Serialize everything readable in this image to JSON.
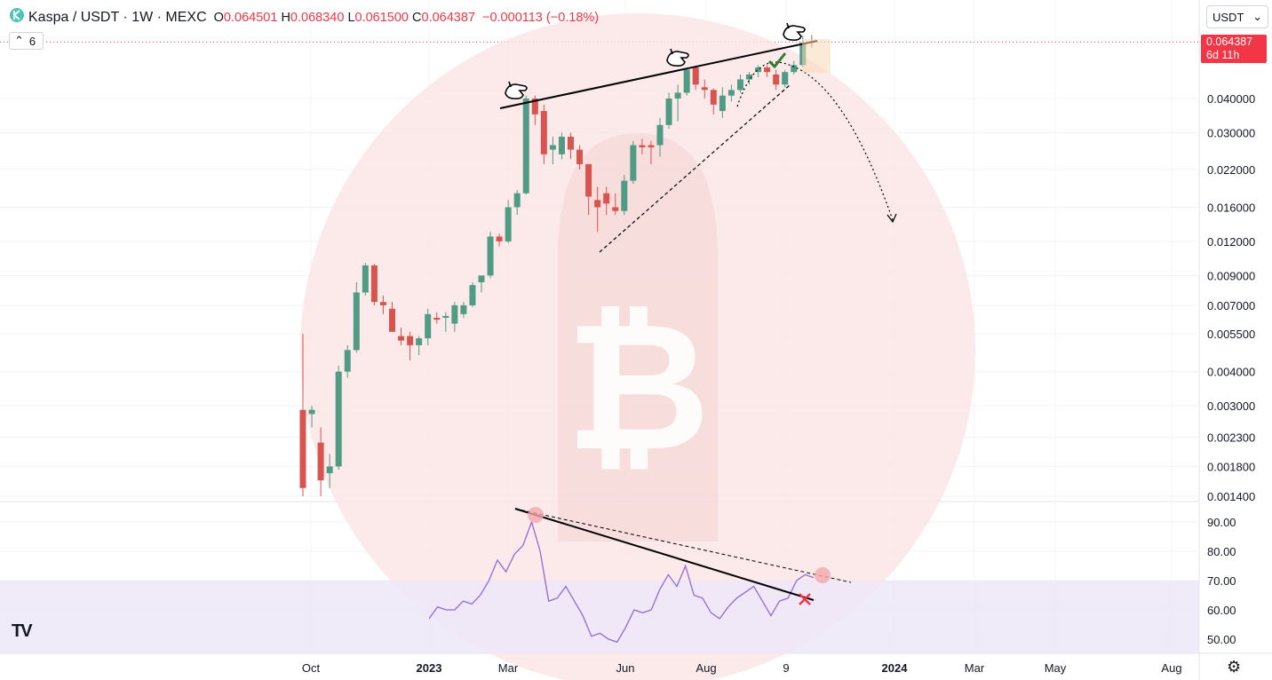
{
  "header": {
    "symbol": "Kaspa / USDT · 1W · MEXC",
    "open_label": "O",
    "open": "0.064501",
    "high_label": "H",
    "high": "0.068340",
    "low_label": "L",
    "low": "0.061500",
    "close_label": "C",
    "close": "0.064387",
    "change": "−0.000113 (−0.18%)"
  },
  "indicator_count": "6",
  "currency_select": "USDT",
  "last_price": {
    "value": "0.064387",
    "countdown": "6d 11h"
  },
  "colors": {
    "up": "#4f9b83",
    "down": "#d9534f",
    "rsi": "#8e6bd8",
    "accent": "#f23645",
    "watermark": "#fbe3e3"
  },
  "chart_data": {
    "type": "candlestick",
    "scale": "log",
    "price_ticks": [
      "0.040000",
      "0.030000",
      "0.022000",
      "0.016000",
      "0.012000",
      "0.009000",
      "0.007000",
      "0.005500",
      "0.004000",
      "0.003000",
      "0.002300",
      "0.001800",
      "0.001400"
    ],
    "x_labels": [
      "Oct",
      "2023",
      "Mar",
      "Jun",
      "Aug",
      "9",
      "2024",
      "Mar",
      "May",
      "Aug"
    ],
    "rsi_ticks": [
      "90.00",
      "80.00",
      "70.00",
      "60.00",
      "50.00"
    ],
    "candles": [
      [
        0.0029,
        0.0055,
        0.0014,
        0.0015
      ],
      [
        0.0028,
        0.003,
        0.0025,
        0.0029
      ],
      [
        0.0022,
        0.0025,
        0.0014,
        0.0016
      ],
      [
        0.0017,
        0.002,
        0.0015,
        0.0018
      ],
      [
        0.0018,
        0.0042,
        0.00175,
        0.004
      ],
      [
        0.004,
        0.005,
        0.0038,
        0.0048
      ],
      [
        0.0048,
        0.0085,
        0.0047,
        0.0078
      ],
      [
        0.0078,
        0.01,
        0.0076,
        0.0098
      ],
      [
        0.0098,
        0.0099,
        0.007,
        0.0072
      ],
      [
        0.0072,
        0.0076,
        0.0065,
        0.007
      ],
      [
        0.0068,
        0.0072,
        0.0056,
        0.0056
      ],
      [
        0.0054,
        0.0058,
        0.005,
        0.0052
      ],
      [
        0.0054,
        0.0056,
        0.0044,
        0.005
      ],
      [
        0.005,
        0.0054,
        0.0046,
        0.0053
      ],
      [
        0.0053,
        0.0068,
        0.005,
        0.0065
      ],
      [
        0.0063,
        0.0066,
        0.006,
        0.0062
      ],
      [
        0.0063,
        0.0066,
        0.0056,
        0.0064
      ],
      [
        0.006,
        0.0072,
        0.0056,
        0.007
      ],
      [
        0.0065,
        0.0072,
        0.0063,
        0.007
      ],
      [
        0.007,
        0.0085,
        0.0069,
        0.0083
      ],
      [
        0.0085,
        0.009,
        0.0078,
        0.009
      ],
      [
        0.009,
        0.013,
        0.0088,
        0.0125
      ],
      [
        0.0125,
        0.0128,
        0.0115,
        0.012
      ],
      [
        0.012,
        0.017,
        0.0118,
        0.016
      ],
      [
        0.016,
        0.0185,
        0.015,
        0.018
      ],
      [
        0.018,
        0.041,
        0.0178,
        0.04
      ],
      [
        0.04,
        0.041,
        0.032,
        0.035
      ],
      [
        0.036,
        0.038,
        0.023,
        0.025
      ],
      [
        0.026,
        0.029,
        0.023,
        0.027
      ],
      [
        0.025,
        0.03,
        0.024,
        0.029
      ],
      [
        0.029,
        0.03,
        0.024,
        0.026
      ],
      [
        0.026,
        0.027,
        0.022,
        0.023
      ],
      [
        0.023,
        0.023,
        0.015,
        0.0175
      ],
      [
        0.017,
        0.019,
        0.013,
        0.016
      ],
      [
        0.018,
        0.019,
        0.015,
        0.0165
      ],
      [
        0.016,
        0.018,
        0.015,
        0.0155
      ],
      [
        0.0155,
        0.021,
        0.015,
        0.02
      ],
      [
        0.02,
        0.028,
        0.0195,
        0.027
      ],
      [
        0.027,
        0.0285,
        0.025,
        0.0265
      ],
      [
        0.027,
        0.028,
        0.023,
        0.0265
      ],
      [
        0.027,
        0.034,
        0.0245,
        0.032
      ],
      [
        0.032,
        0.042,
        0.031,
        0.04
      ],
      [
        0.04,
        0.045,
        0.033,
        0.042
      ],
      [
        0.042,
        0.052,
        0.041,
        0.051
      ],
      [
        0.052,
        0.052,
        0.043,
        0.045
      ],
      [
        0.044,
        0.047,
        0.04,
        0.043
      ],
      [
        0.043,
        0.0435,
        0.035,
        0.038
      ],
      [
        0.036,
        0.044,
        0.034,
        0.041
      ],
      [
        0.041,
        0.045,
        0.039,
        0.043
      ],
      [
        0.043,
        0.049,
        0.042,
        0.047
      ],
      [
        0.047,
        0.05,
        0.045,
        0.049
      ],
      [
        0.05,
        0.053,
        0.048,
        0.052
      ],
      [
        0.052,
        0.053,
        0.048,
        0.05
      ],
      [
        0.049,
        0.051,
        0.043,
        0.045
      ],
      [
        0.045,
        0.051,
        0.044,
        0.05
      ],
      [
        0.05,
        0.055,
        0.049,
        0.053
      ],
      [
        0.053,
        0.068,
        0.052,
        0.064
      ],
      [
        0.0645,
        0.06834,
        0.0615,
        0.06439
      ]
    ],
    "rsi": [
      57,
      61,
      60,
      60,
      63,
      62,
      65,
      70,
      77,
      73,
      79,
      82,
      90,
      80,
      63,
      64,
      68,
      63,
      58,
      51,
      52,
      50,
      49,
      54,
      60,
      59,
      60,
      67,
      72,
      68,
      75,
      65,
      64,
      59,
      57,
      61,
      64,
      66,
      68,
      63,
      58,
      63,
      64,
      70,
      72,
      71
    ]
  }
}
